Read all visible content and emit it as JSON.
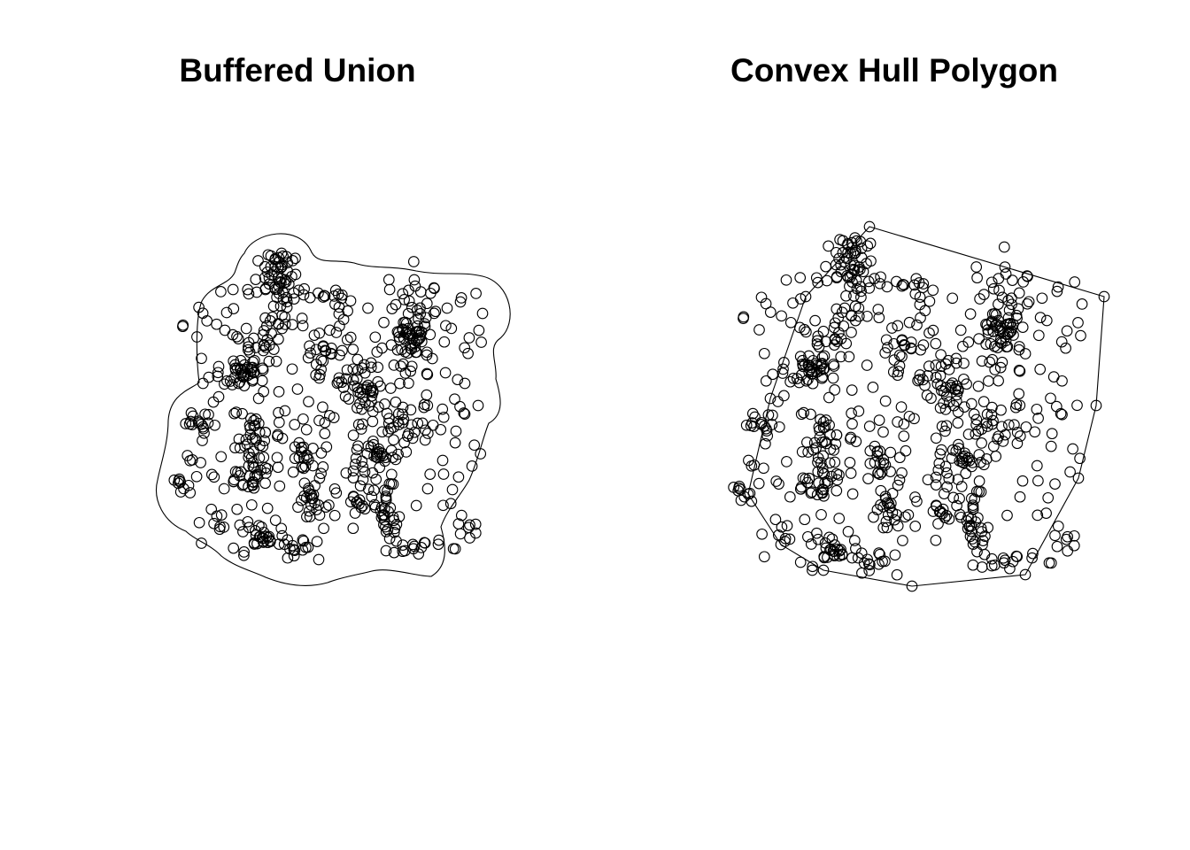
{
  "chart_data": [
    {
      "type": "scatter",
      "title": "Buffered Union",
      "xlabel": "",
      "ylabel": "",
      "points": "cluster-generated",
      "overlay": "buffered-union-outline",
      "colors": {
        "marker": "#000000",
        "outline": "#000000",
        "background": "#ffffff"
      }
    },
    {
      "type": "scatter",
      "title": "Convex Hull Polygon",
      "xlabel": "",
      "ylabel": "",
      "points": "cluster-generated",
      "overlay": "convex-hull",
      "colors": {
        "marker": "#000000",
        "outline": "#000000",
        "background": "#ffffff"
      }
    }
  ]
}
